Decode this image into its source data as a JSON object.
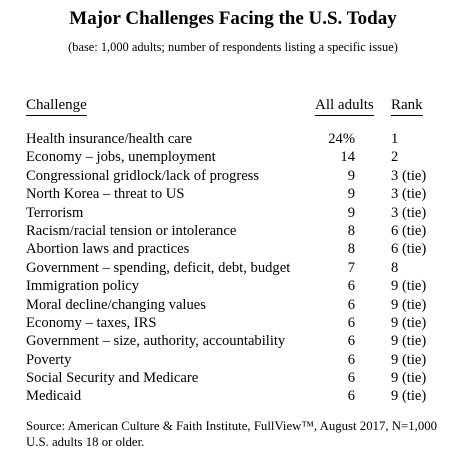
{
  "title": "Major Challenges Facing the U.S. Today",
  "subtitle": "(base: 1,000 adults; number of respondents listing a specific issue)",
  "columns": {
    "challenge": "Challenge",
    "all_adults": "All adults",
    "rank": "Rank"
  },
  "rows": [
    {
      "challenge": "Health insurance/health care",
      "all_adults": "24%",
      "rank": "1"
    },
    {
      "challenge": "Economy – jobs, unemployment",
      "all_adults": "14",
      "rank": "2"
    },
    {
      "challenge": "Congressional gridlock/lack of progress",
      "all_adults": "9",
      "rank": "3 (tie)"
    },
    {
      "challenge": "North Korea – threat to US",
      "all_adults": "9",
      "rank": "3 (tie)"
    },
    {
      "challenge": "Terrorism",
      "all_adults": "9",
      "rank": "3 (tie)"
    },
    {
      "challenge": "Racism/racial tension or intolerance",
      "all_adults": "8",
      "rank": "6 (tie)"
    },
    {
      "challenge": "Abortion laws and practices",
      "all_adults": "8",
      "rank": "6 (tie)"
    },
    {
      "challenge": "Government – spending, deficit, debt, budget",
      "all_adults": "7",
      "rank": "8"
    },
    {
      "challenge": "Immigration policy",
      "all_adults": "6",
      "rank": "9 (tie)"
    },
    {
      "challenge": "Moral decline/changing values",
      "all_adults": "6",
      "rank": "9 (tie)"
    },
    {
      "challenge": "Economy – taxes, IRS",
      "all_adults": "6",
      "rank": "9 (tie)"
    },
    {
      "challenge": "Government – size, authority, accountability",
      "all_adults": "6",
      "rank": "9 (tie)"
    },
    {
      "challenge": "Poverty",
      "all_adults": "6",
      "rank": "9 (tie)"
    },
    {
      "challenge": "Social Security and Medicare",
      "all_adults": "6",
      "rank": "9 (tie)"
    },
    {
      "challenge": "Medicaid",
      "all_adults": "6",
      "rank": "9 (tie)"
    }
  ],
  "source": "Source: American Culture & Faith Institute, FullView™, August 2017, N=1,000 U.S. adults 18 or older."
}
